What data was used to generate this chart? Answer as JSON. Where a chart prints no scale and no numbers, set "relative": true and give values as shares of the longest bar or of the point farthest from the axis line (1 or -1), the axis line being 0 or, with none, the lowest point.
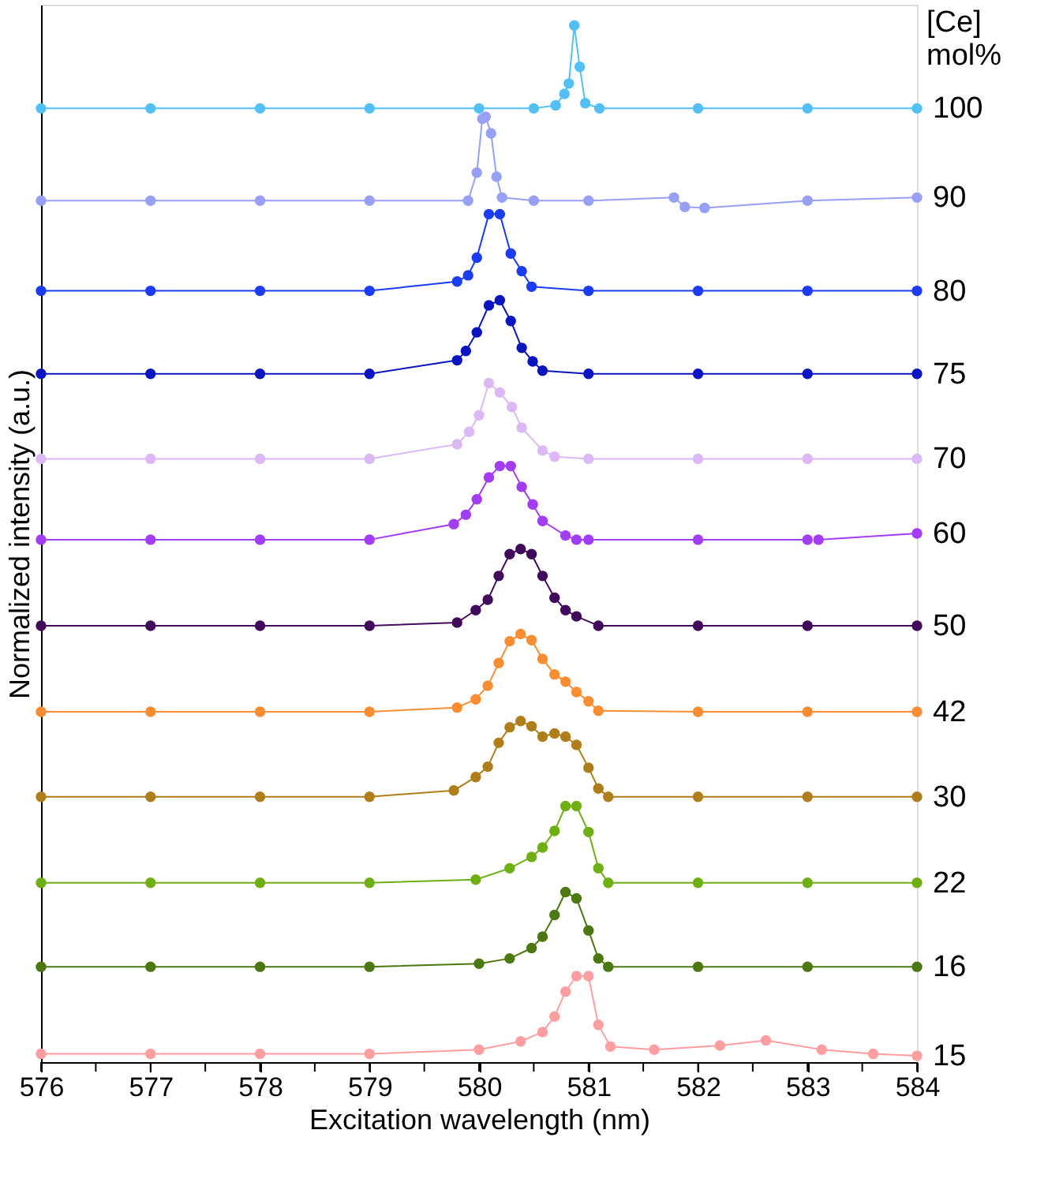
{
  "chart_data": {
    "type": "line",
    "relative": true,
    "xlabel": "Excitation wavelength (nm)",
    "ylabel": "Normalized intensity (a.u.)",
    "legend_title": "[Ce] mol%",
    "xlim": [
      576,
      584
    ],
    "xticks": [
      576,
      {
        "value": 576.5,
        "label": null
      },
      577,
      {
        "value": 577.5,
        "label": null
      },
      578,
      {
        "value": 578.5,
        "label": null
      },
      579,
      {
        "value": 579.5,
        "label": null
      },
      580,
      {
        "value": 580.5,
        "label": null
      },
      581,
      {
        "value": 581.5,
        "label": null
      },
      582,
      {
        "value": 582.5,
        "label": null
      },
      583,
      {
        "value": 583.5,
        "label": null
      },
      584
    ],
    "grid": false,
    "legend": false,
    "marker": "circle",
    "line_style": "solid",
    "tick_labels": "x",
    "series": [
      {
        "name": "100",
        "color": "#52c0f5",
        "x": [
          576,
          577,
          578,
          579,
          580,
          580.5,
          580.7,
          580.78,
          580.82,
          580.87,
          580.92,
          580.97,
          581.1,
          582,
          583,
          584
        ],
        "values": [
          0.92,
          0.92,
          0.92,
          0.92,
          0.92,
          0.92,
          0.923,
          0.934,
          0.944,
          1.0,
          0.96,
          0.925,
          0.92,
          0.92,
          0.92,
          0.92
        ]
      },
      {
        "name": "90",
        "color": "#98a0f5",
        "x": [
          576,
          577,
          578,
          579,
          579.9,
          579.98,
          580.03,
          580.06,
          580.11,
          580.16,
          580.21,
          580.5,
          581,
          581.78,
          581.88,
          582.06,
          583,
          584
        ],
        "values": [
          0.831,
          0.831,
          0.831,
          0.831,
          0.831,
          0.858,
          0.91,
          0.912,
          0.896,
          0.854,
          0.834,
          0.831,
          0.831,
          0.834,
          0.825,
          0.824,
          0.831,
          0.834
        ]
      },
      {
        "name": "80",
        "color": "#1a3cf5",
        "x": [
          576,
          577,
          578,
          579,
          579.8,
          579.9,
          579.98,
          580.09,
          580.19,
          580.29,
          580.39,
          580.48,
          581,
          582,
          583,
          584
        ],
        "values": [
          0.744,
          0.744,
          0.744,
          0.744,
          0.753,
          0.759,
          0.776,
          0.818,
          0.818,
          0.78,
          0.763,
          0.748,
          0.744,
          0.744,
          0.744,
          0.744
        ]
      },
      {
        "name": "75",
        "color": "#0a14c0",
        "x": [
          576,
          577,
          578,
          579,
          579.8,
          579.88,
          579.98,
          580.09,
          580.19,
          580.29,
          580.39,
          580.49,
          580.58,
          581,
          582,
          583,
          584
        ],
        "values": [
          0.664,
          0.664,
          0.664,
          0.664,
          0.677,
          0.686,
          0.704,
          0.73,
          0.735,
          0.715,
          0.689,
          0.676,
          0.667,
          0.664,
          0.664,
          0.664,
          0.664
        ]
      },
      {
        "name": "70",
        "color": "#dcb8f5",
        "x": [
          576,
          577,
          578,
          579,
          579.8,
          579.91,
          580.0,
          580.09,
          580.19,
          580.3,
          580.39,
          580.58,
          580.69,
          581,
          582,
          583,
          584
        ],
        "values": [
          0.582,
          0.582,
          0.582,
          0.582,
          0.596,
          0.608,
          0.624,
          0.655,
          0.646,
          0.632,
          0.612,
          0.59,
          0.584,
          0.582,
          0.582,
          0.582,
          0.582
        ]
      },
      {
        "name": "60",
        "color": "#a23cf5",
        "x": [
          576,
          577,
          578,
          579,
          579.77,
          579.88,
          579.98,
          580.09,
          580.19,
          580.29,
          580.39,
          580.49,
          580.58,
          580.79,
          580.89,
          581,
          582,
          583,
          583.05,
          583.1,
          584
        ],
        "values": [
          0.504,
          0.504,
          0.504,
          0.504,
          0.519,
          0.528,
          0.543,
          0.564,
          0.575,
          0.575,
          0.555,
          0.538,
          0.522,
          0.508,
          0.504,
          0.504,
          0.504,
          0.504,
          null,
          0.504,
          0.51
        ]
      },
      {
        "name": "50",
        "color": "#420a5a",
        "x": [
          576,
          577,
          578,
          579,
          579.8,
          579.97,
          580.08,
          580.18,
          580.28,
          580.38,
          580.48,
          580.58,
          580.69,
          580.79,
          580.89,
          581.09,
          582,
          583,
          584
        ],
        "values": [
          0.421,
          0.421,
          0.421,
          0.421,
          0.424,
          0.436,
          0.446,
          0.469,
          0.49,
          0.495,
          0.49,
          0.469,
          0.448,
          0.436,
          0.43,
          0.421,
          0.421,
          0.421,
          0.421
        ]
      },
      {
        "name": "42",
        "color": "#fa8c32",
        "x": [
          576,
          577,
          578,
          579,
          579.8,
          579.97,
          580.08,
          580.18,
          580.28,
          580.38,
          580.48,
          580.58,
          580.69,
          580.79,
          580.89,
          581.0,
          581.09,
          582,
          583,
          584
        ],
        "values": [
          0.338,
          0.338,
          0.338,
          0.338,
          0.342,
          0.35,
          0.363,
          0.385,
          0.406,
          0.413,
          0.407,
          0.389,
          0.374,
          0.367,
          0.357,
          0.348,
          0.339,
          0.338,
          0.338,
          0.338
        ]
      },
      {
        "name": "30",
        "color": "#af7d19",
        "x": [
          576,
          577,
          578,
          579,
          579.77,
          579.97,
          580.08,
          580.18,
          580.28,
          580.38,
          580.48,
          580.58,
          580.69,
          580.79,
          580.89,
          581.0,
          581.09,
          581.18,
          582,
          583,
          584
        ],
        "values": [
          0.256,
          0.256,
          0.256,
          0.256,
          0.262,
          0.275,
          0.285,
          0.308,
          0.323,
          0.329,
          0.324,
          0.314,
          0.317,
          0.314,
          0.306,
          0.284,
          0.264,
          0.256,
          0.256,
          0.256,
          0.256
        ]
      },
      {
        "name": "22",
        "color": "#6eaf14",
        "x": [
          576,
          577,
          578,
          579,
          579.97,
          580.28,
          580.48,
          580.58,
          580.69,
          580.79,
          580.89,
          581.0,
          581.09,
          581.18,
          582,
          583,
          584
        ],
        "values": [
          0.173,
          0.173,
          0.173,
          0.173,
          0.176,
          0.187,
          0.198,
          0.207,
          0.223,
          0.247,
          0.247,
          0.222,
          0.187,
          0.173,
          0.173,
          0.173,
          0.173
        ]
      },
      {
        "name": "16",
        "color": "#4b7810",
        "x": [
          576,
          577,
          578,
          579,
          580,
          580.28,
          580.48,
          580.58,
          580.69,
          580.79,
          580.89,
          581.0,
          581.09,
          581.18,
          582,
          583,
          584
        ],
        "values": [
          0.092,
          0.092,
          0.092,
          0.092,
          0.095,
          0.1,
          0.11,
          0.121,
          0.142,
          0.164,
          0.158,
          0.127,
          0.1,
          0.092,
          0.092,
          0.092,
          0.092
        ]
      },
      {
        "name": "15",
        "color": "#ff9ea0",
        "x": [
          576,
          577,
          578,
          579,
          580,
          580.38,
          580.58,
          580.69,
          580.79,
          580.89,
          581.0,
          581.09,
          581.2,
          581.6,
          582.2,
          582.62,
          583.13,
          583.6,
          584
        ],
        "values": [
          0.008,
          0.008,
          0.008,
          0.008,
          0.012,
          0.02,
          0.029,
          0.044,
          0.068,
          0.083,
          0.083,
          0.036,
          0.015,
          0.012,
          0.016,
          0.021,
          0.012,
          0.008,
          0.006
        ]
      }
    ]
  }
}
